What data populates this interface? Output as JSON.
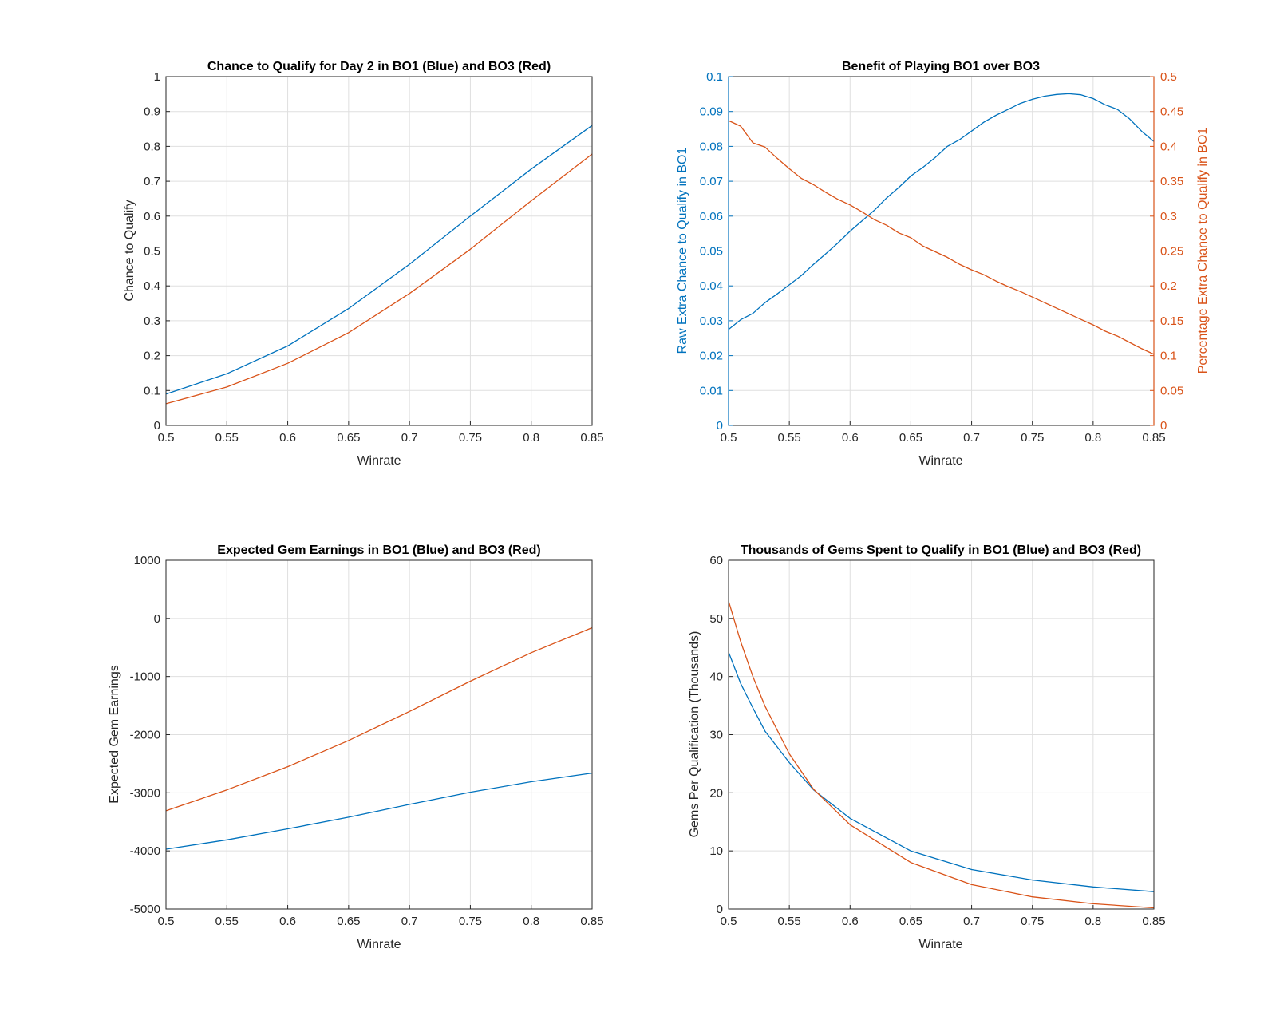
{
  "colors": {
    "blue": "#0072BD",
    "red": "#D95319"
  },
  "chart_data": [
    {
      "type": "line",
      "title": "Chance to Qualify for Day 2 in BO1 (Blue) and BO3 (Red)",
      "xlabel": "Winrate",
      "ylabel": "Chance to Qualify",
      "xlim": [
        0.5,
        0.85
      ],
      "ylim": [
        0,
        1
      ],
      "xticks": [
        0.5,
        0.55,
        0.6,
        0.65,
        0.7,
        0.75,
        0.8,
        0.85
      ],
      "xtick_labels": [
        "0.5",
        "0.55",
        "0.6",
        "0.65",
        "0.7",
        "0.75",
        "0.8",
        "0.85"
      ],
      "yticks": [
        0,
        0.1,
        0.2,
        0.3,
        0.4,
        0.5,
        0.6,
        0.7,
        0.8,
        0.9,
        1
      ],
      "ytick_labels": [
        "0",
        "0.1",
        "0.2",
        "0.3",
        "0.4",
        "0.5",
        "0.6",
        "0.7",
        "0.8",
        "0.9",
        "1"
      ],
      "x": [
        0.5,
        0.55,
        0.6,
        0.65,
        0.7,
        0.75,
        0.8,
        0.85
      ],
      "series": [
        {
          "name": "BO1",
          "color": "blue",
          "values": [
            0.09,
            0.148,
            0.228,
            0.335,
            0.462,
            0.6,
            0.735,
            0.86
          ]
        },
        {
          "name": "BO3",
          "color": "red",
          "values": [
            0.062,
            0.11,
            0.178,
            0.266,
            0.378,
            0.505,
            0.644,
            0.778
          ]
        }
      ]
    },
    {
      "type": "line",
      "title": "Benefit of Playing BO1 over BO3",
      "xlabel": "Winrate",
      "ylabel": "Raw Extra Chance to Qualify in BO1",
      "ylabel_right": "Percentage Extra Chance to Qualify in BO1",
      "xlim": [
        0.5,
        0.85
      ],
      "ylim": [
        0,
        0.1
      ],
      "ylim_right": [
        0,
        0.5
      ],
      "xticks": [
        0.5,
        0.55,
        0.6,
        0.65,
        0.7,
        0.75,
        0.8,
        0.85
      ],
      "xtick_labels": [
        "0.5",
        "0.55",
        "0.6",
        "0.65",
        "0.7",
        "0.75",
        "0.8",
        "0.85"
      ],
      "yticks": [
        0,
        0.01,
        0.02,
        0.03,
        0.04,
        0.05,
        0.06,
        0.07,
        0.08,
        0.09,
        0.1
      ],
      "ytick_labels": [
        "0",
        "0.01",
        "0.02",
        "0.03",
        "0.04",
        "0.05",
        "0.06",
        "0.07",
        "0.08",
        "0.09",
        "0.1"
      ],
      "yticks_right": [
        0,
        0.05,
        0.1,
        0.15,
        0.2,
        0.25,
        0.3,
        0.35,
        0.4,
        0.45,
        0.5
      ],
      "ytick_labels_right": [
        "0",
        "0.05",
        "0.1",
        "0.15",
        "0.2",
        "0.25",
        "0.3",
        "0.35",
        "0.4",
        "0.45",
        "0.5"
      ],
      "x": [
        0.5,
        0.51,
        0.52,
        0.53,
        0.54,
        0.55,
        0.56,
        0.57,
        0.58,
        0.59,
        0.6,
        0.61,
        0.62,
        0.63,
        0.64,
        0.65,
        0.66,
        0.67,
        0.68,
        0.69,
        0.7,
        0.71,
        0.72,
        0.73,
        0.74,
        0.75,
        0.76,
        0.77,
        0.78,
        0.79,
        0.8,
        0.81,
        0.82,
        0.83,
        0.84,
        0.85
      ],
      "series": [
        {
          "name": "Raw Extra Chance",
          "color": "blue",
          "axis": "left",
          "values": [
            0.0275,
            0.0303,
            0.0321,
            0.0352,
            0.0377,
            0.0403,
            0.043,
            0.0462,
            0.0492,
            0.0523,
            0.0557,
            0.0587,
            0.0617,
            0.0652,
            0.0682,
            0.0715,
            0.074,
            0.0768,
            0.08,
            0.0819,
            0.0844,
            0.0869,
            0.0889,
            0.0906,
            0.0923,
            0.0935,
            0.0944,
            0.0949,
            0.0951,
            0.0948,
            0.0937,
            0.0919,
            0.0906,
            0.0879,
            0.0843,
            0.0814
          ]
        },
        {
          "name": "Percentage Extra Chance",
          "color": "red",
          "axis": "right",
          "values": [
            0.437,
            0.429,
            0.405,
            0.399,
            0.383,
            0.368,
            0.354,
            0.345,
            0.334,
            0.324,
            0.316,
            0.306,
            0.295,
            0.287,
            0.276,
            0.269,
            0.257,
            0.249,
            0.241,
            0.231,
            0.223,
            0.216,
            0.207,
            0.199,
            0.192,
            0.184,
            0.176,
            0.168,
            0.16,
            0.152,
            0.144,
            0.135,
            0.128,
            0.119,
            0.11,
            0.102
          ]
        }
      ]
    },
    {
      "type": "line",
      "title": "Expected Gem Earnings in BO1 (Blue) and BO3 (Red)",
      "xlabel": "Winrate",
      "ylabel": "Expected Gem Earnings",
      "xlim": [
        0.5,
        0.85
      ],
      "ylim": [
        -5000,
        1000
      ],
      "xticks": [
        0.5,
        0.55,
        0.6,
        0.65,
        0.7,
        0.75,
        0.8,
        0.85
      ],
      "xtick_labels": [
        "0.5",
        "0.55",
        "0.6",
        "0.65",
        "0.7",
        "0.75",
        "0.8",
        "0.85"
      ],
      "yticks": [
        -5000,
        -4000,
        -3000,
        -2000,
        -1000,
        0,
        1000
      ],
      "ytick_labels": [
        "-5000",
        "-4000",
        "-3000",
        "-2000",
        "-1000",
        "0",
        "1000"
      ],
      "x": [
        0.5,
        0.55,
        0.6,
        0.65,
        0.7,
        0.75,
        0.8,
        0.85
      ],
      "series": [
        {
          "name": "BO1",
          "color": "blue",
          "values": [
            -3970,
            -3810,
            -3620,
            -3420,
            -3200,
            -2990,
            -2810,
            -2660
          ]
        },
        {
          "name": "BO3",
          "color": "red",
          "values": [
            -3310,
            -2950,
            -2550,
            -2100,
            -1600,
            -1080,
            -590,
            -160
          ]
        }
      ]
    },
    {
      "type": "line",
      "title": "Thousands of Gems Spent to Qualify in BO1 (Blue) and BO3 (Red)",
      "xlabel": "Winrate",
      "ylabel": "Gems Per Qualification (Thousands)",
      "xlim": [
        0.5,
        0.85
      ],
      "ylim": [
        0,
        60
      ],
      "xticks": [
        0.5,
        0.55,
        0.6,
        0.65,
        0.7,
        0.75,
        0.8,
        0.85
      ],
      "xtick_labels": [
        "0.5",
        "0.55",
        "0.6",
        "0.65",
        "0.7",
        "0.75",
        "0.8",
        "0.85"
      ],
      "yticks": [
        0,
        10,
        20,
        30,
        40,
        50,
        60
      ],
      "ytick_labels": [
        "0",
        "10",
        "20",
        "30",
        "40",
        "50",
        "60"
      ],
      "x": [
        0.5,
        0.51,
        0.52,
        0.53,
        0.55,
        0.57,
        0.6,
        0.65,
        0.7,
        0.75,
        0.8,
        0.85
      ],
      "series": [
        {
          "name": "BO1",
          "color": "blue",
          "values": [
            44.2,
            38.8,
            34.6,
            30.6,
            25.2,
            20.5,
            15.6,
            10,
            6.8,
            5,
            3.8,
            3
          ]
        },
        {
          "name": "BO3",
          "color": "red",
          "values": [
            53,
            46,
            40,
            34.9,
            26.7,
            20.6,
            14.5,
            8,
            4.2,
            2.1,
            0.9,
            0.2
          ]
        }
      ]
    }
  ]
}
